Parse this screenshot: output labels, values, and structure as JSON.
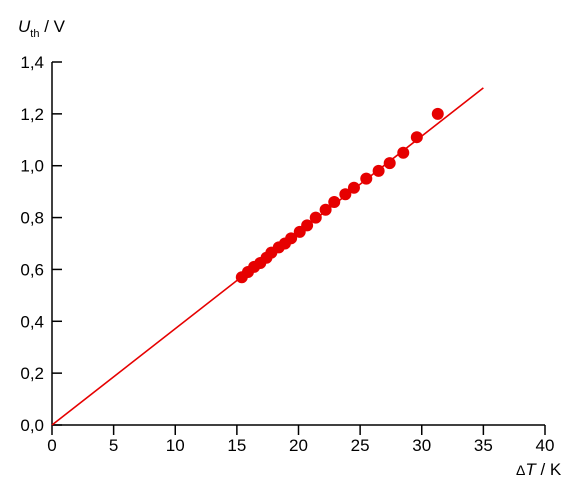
{
  "chart_data": {
    "type": "scatter",
    "x_axis": {
      "symbol": "ΔT",
      "delta": "Δ",
      "variable": "T",
      "unit_text": " / K",
      "range": [
        0,
        40
      ],
      "ticks": [
        0,
        5,
        10,
        15,
        20,
        25,
        30,
        35,
        40
      ],
      "tick_labels": [
        "0",
        "5",
        "10",
        "15",
        "20",
        "25",
        "30",
        "35",
        "40"
      ]
    },
    "y_axis": {
      "symbol": "U_th",
      "variable": "U",
      "subscript": "th",
      "unit_text": " / V",
      "range": [
        0,
        1.4
      ],
      "ticks": [
        0,
        0.2,
        0.4,
        0.6,
        0.8,
        1.0,
        1.2,
        1.4
      ],
      "tick_labels": [
        "0,0",
        "0,2",
        "0,4",
        "0,6",
        "0,8",
        "1,0",
        "1,2",
        "1,4"
      ]
    },
    "grid": false,
    "colors": {
      "points": "#e60000",
      "line": "#e60000",
      "axes": "#000000"
    },
    "series": [
      {
        "kind": "scatter",
        "x": [
          15.4,
          15.9,
          16.4,
          16.9,
          17.4,
          17.8,
          18.4,
          18.9,
          19.4,
          20.1,
          20.7,
          21.4,
          22.2,
          22.9,
          23.8,
          24.5,
          25.5,
          26.5,
          27.4,
          28.5,
          29.6,
          31.3
        ],
        "y": [
          0.57,
          0.59,
          0.61,
          0.625,
          0.645,
          0.665,
          0.685,
          0.7,
          0.72,
          0.745,
          0.77,
          0.8,
          0.83,
          0.86,
          0.89,
          0.915,
          0.95,
          0.98,
          1.01,
          1.05,
          1.11,
          1.2
        ]
      },
      {
        "kind": "fit-line",
        "x": [
          0,
          35
        ],
        "y": [
          0,
          1.3
        ]
      }
    ]
  }
}
